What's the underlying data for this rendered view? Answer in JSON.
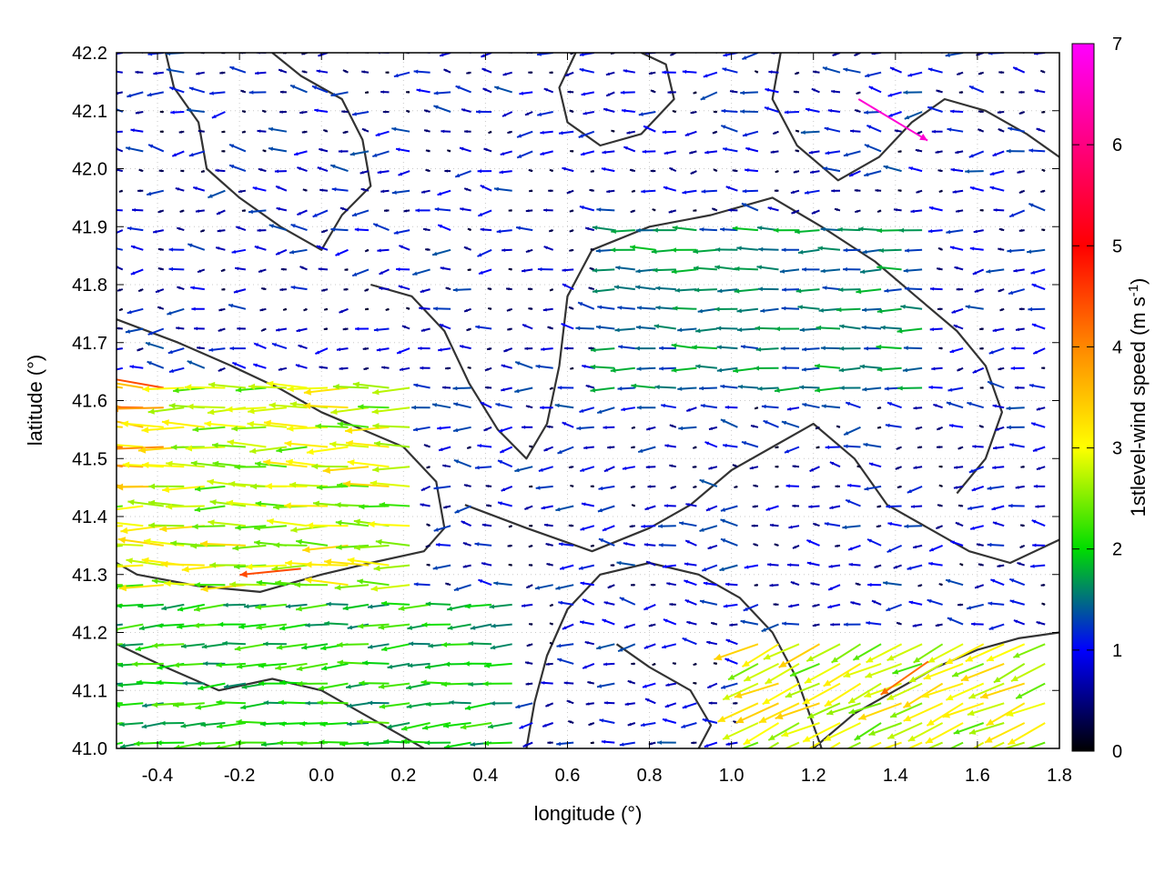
{
  "chart_data": {
    "type": "quiver",
    "xlabel": "longitude (°)",
    "ylabel": "latitude (°)",
    "xlim": [
      -0.5,
      1.8
    ],
    "ylim": [
      41.0,
      42.2
    ],
    "xticks": [
      "-0.4",
      "-0.2",
      "0.0",
      "0.2",
      "0.4",
      "0.6",
      "0.8",
      "1.0",
      "1.2",
      "1.4",
      "1.6",
      "1.8"
    ],
    "yticks": [
      "41.0",
      "41.1",
      "41.2",
      "41.3",
      "41.4",
      "41.5",
      "41.6",
      "41.7",
      "41.8",
      "41.9",
      "42.0",
      "42.1",
      "42.2"
    ],
    "grid": true,
    "colorbar": {
      "label": "1stlevel-wind speed (m s",
      "label_sup": "-1",
      "label_end": ")",
      "range": [
        0,
        7
      ],
      "ticks": [
        "0",
        "1",
        "2",
        "3",
        "4",
        "5",
        "6",
        "7"
      ],
      "colors": [
        "#000000",
        "#0000ff",
        "#00dd00",
        "#ffff00",
        "#ff8800",
        "#ff0000",
        "#ff00ff"
      ]
    },
    "wind_field": {
      "grid_step_lon": 0.05,
      "grid_step_lat": 0.034,
      "prevailing_direction": "east-to-west",
      "regions": [
        {
          "lon": [
            -0.5,
            0.25
          ],
          "lat": [
            41.25,
            41.65
          ],
          "speed": 3.4,
          "direction_deg": 180
        },
        {
          "lon": [
            -0.5,
            -0.35
          ],
          "lat": [
            41.45,
            41.65
          ],
          "speed": 4.6,
          "direction_deg": 175
        },
        {
          "lon": [
            0.7,
            1.5
          ],
          "lat": [
            41.6,
            41.9
          ],
          "speed": 1.9,
          "direction_deg": 180
        },
        {
          "lon": [
            1.05,
            1.8
          ],
          "lat": [
            41.0,
            41.18
          ],
          "speed": 3.5,
          "direction_deg": 205
        },
        {
          "lon": [
            -0.5,
            0.5
          ],
          "lat": [
            41.0,
            41.25
          ],
          "speed": 2.4,
          "direction_deg": 185
        }
      ],
      "background_speed": 1.0,
      "highlight_vectors": [
        {
          "lon": 1.31,
          "lat": 42.12,
          "u": 1.0,
          "v": -0.6,
          "speed": 6.8
        },
        {
          "lon": -0.05,
          "lat": 41.31,
          "u": -1.0,
          "v": -0.1,
          "speed": 5.2
        },
        {
          "lon": 1.48,
          "lat": 41.15,
          "u": -1.0,
          "v": -0.7,
          "speed": 4.9
        }
      ]
    },
    "contours": [
      {
        "name": "contour-1",
        "points": [
          [
            -0.5,
            41.74
          ],
          [
            -0.35,
            41.7
          ],
          [
            -0.22,
            41.66
          ],
          [
            -0.1,
            41.62
          ],
          [
            0.0,
            41.58
          ],
          [
            0.1,
            41.55
          ],
          [
            0.2,
            41.52
          ],
          [
            0.28,
            41.46
          ],
          [
            0.3,
            41.38
          ],
          [
            0.25,
            41.34
          ],
          [
            0.12,
            41.32
          ],
          [
            0.0,
            41.3
          ],
          [
            -0.15,
            41.27
          ],
          [
            -0.3,
            41.28
          ],
          [
            -0.45,
            41.3
          ],
          [
            -0.5,
            41.32
          ]
        ]
      },
      {
        "name": "contour-2",
        "points": [
          [
            -0.38,
            42.2
          ],
          [
            -0.36,
            42.14
          ],
          [
            -0.3,
            42.08
          ],
          [
            -0.28,
            42.0
          ],
          [
            -0.2,
            41.95
          ],
          [
            -0.1,
            41.9
          ],
          [
            0.0,
            41.86
          ],
          [
            0.05,
            41.92
          ],
          [
            0.12,
            41.97
          ],
          [
            0.1,
            42.05
          ],
          [
            0.05,
            42.12
          ],
          [
            -0.05,
            42.16
          ],
          [
            -0.12,
            42.2
          ]
        ]
      },
      {
        "name": "contour-3",
        "points": [
          [
            0.12,
            41.8
          ],
          [
            0.22,
            41.78
          ],
          [
            0.3,
            41.72
          ],
          [
            0.36,
            41.63
          ],
          [
            0.43,
            41.55
          ],
          [
            0.5,
            41.5
          ],
          [
            0.55,
            41.56
          ],
          [
            0.58,
            41.66
          ],
          [
            0.6,
            41.78
          ],
          [
            0.66,
            41.86
          ],
          [
            0.8,
            41.9
          ],
          [
            0.95,
            41.92
          ],
          [
            1.1,
            41.95
          ],
          [
            1.22,
            41.9
          ],
          [
            1.35,
            41.84
          ],
          [
            1.45,
            41.78
          ],
          [
            1.55,
            41.72
          ],
          [
            1.62,
            41.66
          ],
          [
            1.66,
            41.58
          ],
          [
            1.62,
            41.5
          ],
          [
            1.55,
            41.44
          ]
        ]
      },
      {
        "name": "contour-4",
        "points": [
          [
            0.35,
            41.42
          ],
          [
            0.5,
            41.38
          ],
          [
            0.66,
            41.34
          ],
          [
            0.8,
            41.38
          ],
          [
            0.9,
            41.42
          ],
          [
            1.0,
            41.48
          ],
          [
            1.1,
            41.52
          ],
          [
            1.2,
            41.56
          ],
          [
            1.3,
            41.5
          ],
          [
            1.38,
            41.42
          ],
          [
            1.48,
            41.38
          ],
          [
            1.58,
            41.34
          ],
          [
            1.68,
            41.32
          ],
          [
            1.8,
            41.36
          ]
        ]
      },
      {
        "name": "contour-5",
        "points": [
          [
            0.5,
            41.0
          ],
          [
            0.52,
            41.08
          ],
          [
            0.55,
            41.16
          ],
          [
            0.6,
            41.24
          ],
          [
            0.68,
            41.3
          ],
          [
            0.8,
            41.32
          ],
          [
            0.92,
            41.3
          ],
          [
            1.02,
            41.26
          ],
          [
            1.1,
            41.2
          ],
          [
            1.16,
            41.12
          ],
          [
            1.2,
            41.04
          ],
          [
            1.22,
            41.0
          ]
        ]
      },
      {
        "name": "contour-6",
        "points": [
          [
            1.2,
            41.0
          ],
          [
            1.3,
            41.06
          ],
          [
            1.4,
            41.1
          ],
          [
            1.5,
            41.14
          ],
          [
            1.6,
            41.17
          ],
          [
            1.7,
            41.19
          ],
          [
            1.8,
            41.2
          ]
        ]
      },
      {
        "name": "contour-7",
        "points": [
          [
            0.62,
            42.2
          ],
          [
            0.58,
            42.14
          ],
          [
            0.6,
            42.08
          ],
          [
            0.68,
            42.04
          ],
          [
            0.78,
            42.06
          ],
          [
            0.86,
            42.12
          ],
          [
            0.84,
            42.18
          ],
          [
            0.78,
            42.2
          ]
        ]
      },
      {
        "name": "contour-8",
        "points": [
          [
            1.12,
            42.2
          ],
          [
            1.1,
            42.12
          ],
          [
            1.16,
            42.04
          ],
          [
            1.26,
            41.98
          ],
          [
            1.36,
            42.02
          ],
          [
            1.44,
            42.08
          ],
          [
            1.52,
            42.12
          ],
          [
            1.62,
            42.1
          ],
          [
            1.72,
            42.06
          ],
          [
            1.8,
            42.02
          ]
        ]
      },
      {
        "name": "contour-9",
        "points": [
          [
            -0.5,
            41.18
          ],
          [
            -0.38,
            41.14
          ],
          [
            -0.25,
            41.1
          ],
          [
            -0.12,
            41.12
          ],
          [
            0.0,
            41.1
          ],
          [
            0.1,
            41.06
          ],
          [
            0.2,
            41.02
          ],
          [
            0.25,
            41.0
          ]
        ]
      },
      {
        "name": "contour-10",
        "points": [
          [
            0.72,
            41.18
          ],
          [
            0.8,
            41.14
          ],
          [
            0.9,
            41.1
          ],
          [
            0.95,
            41.04
          ],
          [
            0.92,
            41.0
          ]
        ]
      }
    ]
  }
}
